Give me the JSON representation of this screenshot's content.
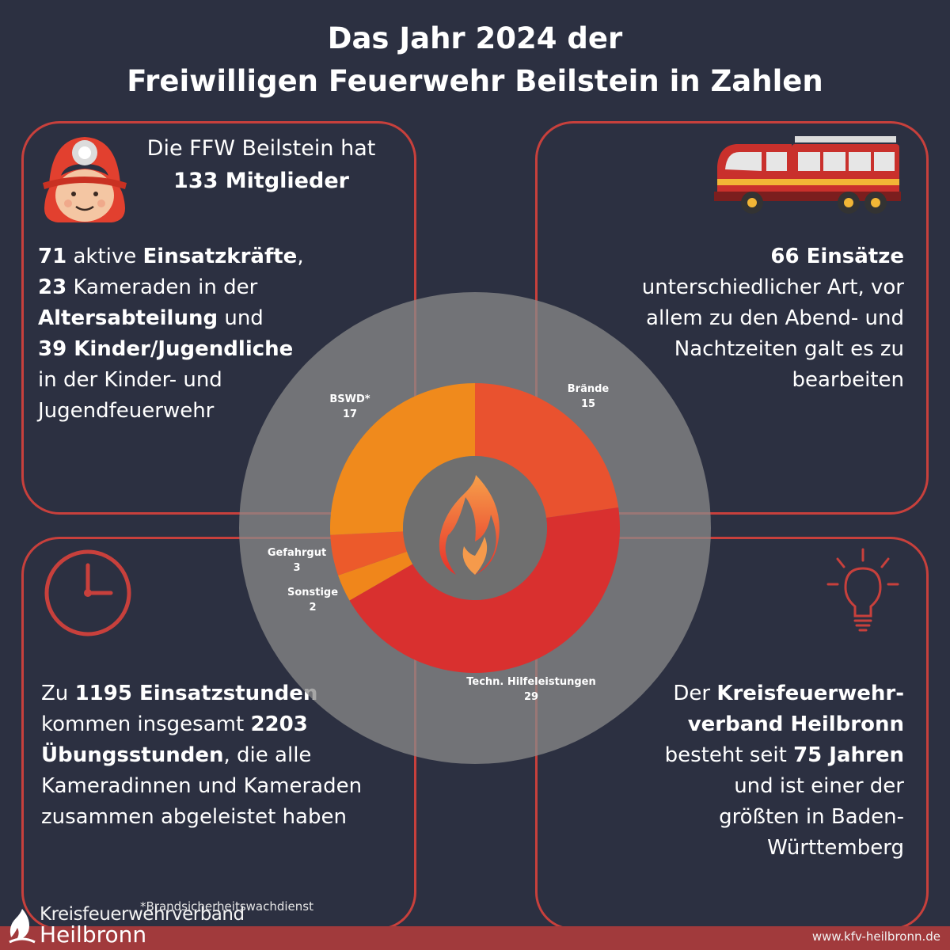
{
  "title": {
    "line1": "Das Jahr 2024 der",
    "line2": "Freiwilligen Feuerwehr Beilstein in Zahlen"
  },
  "members": {
    "intro": "Die FFW Beilstein hat",
    "count": "133 Mitglieder"
  },
  "forces": {
    "l1_num": "71",
    "l1_mid": " aktive ",
    "l1_bold": "Einsatzkräfte",
    "l1_end": ",",
    "l2_num": "23",
    "l2_mid": " Kameraden in der",
    "l3_bold": "Altersabteilung",
    "l3_end": " und",
    "l4_bold": "39 Kinder/Jugendliche",
    "l5": "in der Kinder- und",
    "l6": "Jugendfeuerwehr"
  },
  "missions": {
    "count": "66 Einsätze",
    "l2": "unterschiedlicher Art, vor",
    "l3": "allem zu den Abend- und",
    "l4": "Nachtzeiten galt es zu",
    "l5": "bearbeiten "
  },
  "hours": {
    "l1_pre": "Zu ",
    "l1_bold": "1195 Einsatzstunden",
    "l2_pre": "kommen insgesamt ",
    "l2_bold": "2203",
    "l3_bold": "Übungsstunden",
    "l3_end": ", die alle",
    "l4": "Kameradinnen und Kameraden",
    "l5": "zusammen abgeleistet haben"
  },
  "association": {
    "l1_pre": "Der ",
    "l1_bold": "Kreisfeuerwehr-",
    "l2_bold": "verband Heilbronn",
    "l3_pre": "besteht seit ",
    "l3_bold": "75 Jahren",
    "l4": "und ist einer der",
    "l5": "größten in Baden-",
    "l6": "Württemberg"
  },
  "chart_data": {
    "type": "pie",
    "title": "",
    "categories": [
      "Brände",
      "Techn. Hilfeleistungen",
      "Sonstige",
      "Gefahrgut",
      "BSWD*"
    ],
    "values": [
      15,
      29,
      2,
      3,
      17
    ],
    "colors": [
      "#e9522f",
      "#d9302f",
      "#f0861b",
      "#ec5a2b",
      "#f08a1c"
    ]
  },
  "footnote": "*Brandsicherheitswachdienst",
  "logo": {
    "line1": "Kreisfeuerwehrverband",
    "line2": "Heilbronn"
  },
  "website": "www.kfv-heilbronn.de",
  "colors": {
    "background": "#2c3041",
    "accent": "#c8403c",
    "footer": "#a13a3c"
  },
  "icons": [
    "firefighter-icon",
    "fire-truck-icon",
    "clock-icon",
    "lightbulb-icon",
    "flame-icon"
  ]
}
